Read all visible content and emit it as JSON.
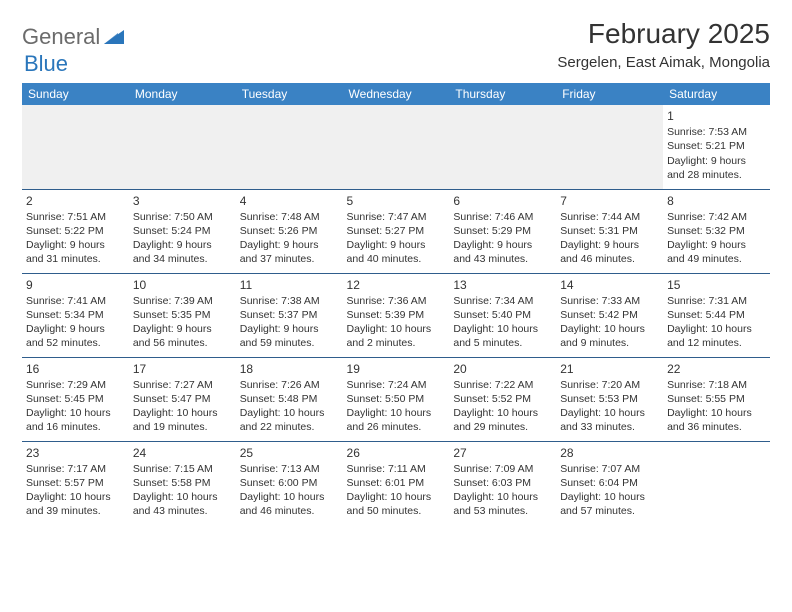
{
  "logo": {
    "part1": "General",
    "part2": "Blue"
  },
  "title": "February 2025",
  "subtitle": "Sergelen, East Aimak, Mongolia",
  "colors": {
    "header_bg": "#3a82c4",
    "header_fg": "#ffffff",
    "row_border": "#2f5d8c",
    "logo_gray": "#6b6b6b",
    "logo_blue": "#2a76bb",
    "text": "#333333",
    "gray_bg": "#f0f0f0"
  },
  "weekdays": [
    "Sunday",
    "Monday",
    "Tuesday",
    "Wednesday",
    "Thursday",
    "Friday",
    "Saturday"
  ],
  "weeks": [
    [
      null,
      null,
      null,
      null,
      null,
      null,
      {
        "n": "1",
        "sr": "7:53 AM",
        "ss": "5:21 PM",
        "dl": "9 hours and 28 minutes."
      }
    ],
    [
      {
        "n": "2",
        "sr": "7:51 AM",
        "ss": "5:22 PM",
        "dl": "9 hours and 31 minutes."
      },
      {
        "n": "3",
        "sr": "7:50 AM",
        "ss": "5:24 PM",
        "dl": "9 hours and 34 minutes."
      },
      {
        "n": "4",
        "sr": "7:48 AM",
        "ss": "5:26 PM",
        "dl": "9 hours and 37 minutes."
      },
      {
        "n": "5",
        "sr": "7:47 AM",
        "ss": "5:27 PM",
        "dl": "9 hours and 40 minutes."
      },
      {
        "n": "6",
        "sr": "7:46 AM",
        "ss": "5:29 PM",
        "dl": "9 hours and 43 minutes."
      },
      {
        "n": "7",
        "sr": "7:44 AM",
        "ss": "5:31 PM",
        "dl": "9 hours and 46 minutes."
      },
      {
        "n": "8",
        "sr": "7:42 AM",
        "ss": "5:32 PM",
        "dl": "9 hours and 49 minutes."
      }
    ],
    [
      {
        "n": "9",
        "sr": "7:41 AM",
        "ss": "5:34 PM",
        "dl": "9 hours and 52 minutes."
      },
      {
        "n": "10",
        "sr": "7:39 AM",
        "ss": "5:35 PM",
        "dl": "9 hours and 56 minutes."
      },
      {
        "n": "11",
        "sr": "7:38 AM",
        "ss": "5:37 PM",
        "dl": "9 hours and 59 minutes."
      },
      {
        "n": "12",
        "sr": "7:36 AM",
        "ss": "5:39 PM",
        "dl": "10 hours and 2 minutes."
      },
      {
        "n": "13",
        "sr": "7:34 AM",
        "ss": "5:40 PM",
        "dl": "10 hours and 5 minutes."
      },
      {
        "n": "14",
        "sr": "7:33 AM",
        "ss": "5:42 PM",
        "dl": "10 hours and 9 minutes."
      },
      {
        "n": "15",
        "sr": "7:31 AM",
        "ss": "5:44 PM",
        "dl": "10 hours and 12 minutes."
      }
    ],
    [
      {
        "n": "16",
        "sr": "7:29 AM",
        "ss": "5:45 PM",
        "dl": "10 hours and 16 minutes."
      },
      {
        "n": "17",
        "sr": "7:27 AM",
        "ss": "5:47 PM",
        "dl": "10 hours and 19 minutes."
      },
      {
        "n": "18",
        "sr": "7:26 AM",
        "ss": "5:48 PM",
        "dl": "10 hours and 22 minutes."
      },
      {
        "n": "19",
        "sr": "7:24 AM",
        "ss": "5:50 PM",
        "dl": "10 hours and 26 minutes."
      },
      {
        "n": "20",
        "sr": "7:22 AM",
        "ss": "5:52 PM",
        "dl": "10 hours and 29 minutes."
      },
      {
        "n": "21",
        "sr": "7:20 AM",
        "ss": "5:53 PM",
        "dl": "10 hours and 33 minutes."
      },
      {
        "n": "22",
        "sr": "7:18 AM",
        "ss": "5:55 PM",
        "dl": "10 hours and 36 minutes."
      }
    ],
    [
      {
        "n": "23",
        "sr": "7:17 AM",
        "ss": "5:57 PM",
        "dl": "10 hours and 39 minutes."
      },
      {
        "n": "24",
        "sr": "7:15 AM",
        "ss": "5:58 PM",
        "dl": "10 hours and 43 minutes."
      },
      {
        "n": "25",
        "sr": "7:13 AM",
        "ss": "6:00 PM",
        "dl": "10 hours and 46 minutes."
      },
      {
        "n": "26",
        "sr": "7:11 AM",
        "ss": "6:01 PM",
        "dl": "10 hours and 50 minutes."
      },
      {
        "n": "27",
        "sr": "7:09 AM",
        "ss": "6:03 PM",
        "dl": "10 hours and 53 minutes."
      },
      {
        "n": "28",
        "sr": "7:07 AM",
        "ss": "6:04 PM",
        "dl": "10 hours and 57 minutes."
      },
      null
    ]
  ]
}
